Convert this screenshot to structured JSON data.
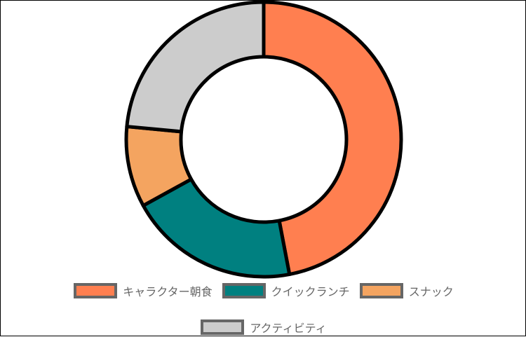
{
  "chart_data": {
    "type": "pie",
    "variant": "doughnut",
    "categories": [
      "キャラクター朝食",
      "クイックランチ",
      "スナック",
      "アクティビティ"
    ],
    "values": [
      47,
      20,
      9.5,
      23.5
    ],
    "colors": [
      "#FF7F50",
      "#008080",
      "#F4A460",
      "#CCCCCC"
    ],
    "title": "",
    "legend_position": "bottom"
  }
}
